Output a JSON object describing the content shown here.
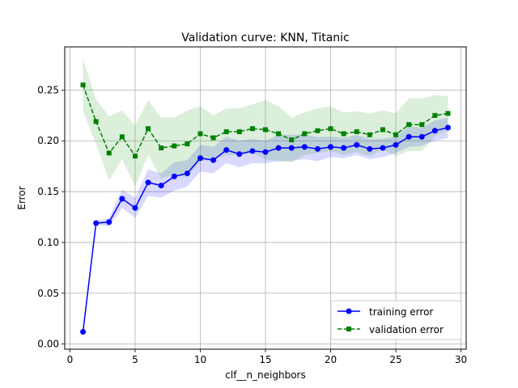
{
  "chart_data": {
    "type": "line",
    "title": "Validation curve: KNN, Titanic",
    "xlabel": "clf__n_neighbors",
    "ylabel": "Error",
    "xlim": [
      -0.4,
      30.4
    ],
    "ylim": [
      -0.0051,
      0.2925
    ],
    "xticks": [
      0,
      5,
      10,
      15,
      20,
      25,
      30
    ],
    "yticks": [
      0.0,
      0.05,
      0.1,
      0.15,
      0.2,
      0.25
    ],
    "ytick_labels": [
      "0.00",
      "0.05",
      "0.10",
      "0.15",
      "0.20",
      "0.25"
    ],
    "grid": true,
    "legend_position": "lower-right",
    "x": [
      1,
      2,
      3,
      4,
      5,
      6,
      7,
      8,
      9,
      10,
      11,
      12,
      13,
      14,
      15,
      16,
      17,
      18,
      19,
      20,
      21,
      22,
      23,
      24,
      25,
      26,
      27,
      28,
      29
    ],
    "series": [
      {
        "name": "training error",
        "color": "#0000ff",
        "band_color": "#0000ff",
        "marker": "circle",
        "linestyle": "solid",
        "values": [
          0.012,
          0.119,
          0.12,
          0.143,
          0.134,
          0.159,
          0.156,
          0.165,
          0.168,
          0.183,
          0.181,
          0.191,
          0.187,
          0.19,
          0.189,
          0.193,
          0.193,
          0.194,
          0.192,
          0.194,
          0.193,
          0.196,
          0.192,
          0.193,
          0.196,
          0.204,
          0.204,
          0.21,
          0.213
        ],
        "lower": [
          0.012,
          0.117,
          0.116,
          0.134,
          0.124,
          0.146,
          0.144,
          0.151,
          0.155,
          0.17,
          0.168,
          0.178,
          0.174,
          0.178,
          0.178,
          0.18,
          0.18,
          0.182,
          0.18,
          0.184,
          0.183,
          0.186,
          0.182,
          0.184,
          0.188,
          0.194,
          0.195,
          0.2,
          0.203
        ],
        "upper": [
          0.012,
          0.121,
          0.124,
          0.152,
          0.144,
          0.172,
          0.168,
          0.179,
          0.181,
          0.196,
          0.194,
          0.204,
          0.2,
          0.202,
          0.2,
          0.206,
          0.206,
          0.206,
          0.204,
          0.204,
          0.203,
          0.206,
          0.202,
          0.202,
          0.204,
          0.214,
          0.213,
          0.22,
          0.223
        ]
      },
      {
        "name": "validation error",
        "color": "#008000",
        "band_color": "#2ca02c",
        "marker": "square",
        "linestyle": "dashed",
        "values": [
          0.255,
          0.219,
          0.188,
          0.204,
          0.185,
          0.212,
          0.193,
          0.195,
          0.197,
          0.207,
          0.203,
          0.209,
          0.209,
          0.212,
          0.211,
          0.207,
          0.201,
          0.207,
          0.21,
          0.212,
          0.207,
          0.209,
          0.206,
          0.211,
          0.206,
          0.216,
          0.216,
          0.225,
          0.227
        ],
        "lower": [
          0.229,
          0.197,
          0.161,
          0.182,
          0.155,
          0.186,
          0.163,
          0.167,
          0.164,
          0.18,
          0.181,
          0.186,
          0.186,
          0.188,
          0.182,
          0.18,
          0.179,
          0.186,
          0.188,
          0.19,
          0.186,
          0.189,
          0.185,
          0.192,
          0.185,
          0.19,
          0.19,
          0.205,
          0.21
        ],
        "upper": [
          0.281,
          0.241,
          0.224,
          0.23,
          0.215,
          0.24,
          0.223,
          0.223,
          0.23,
          0.234,
          0.225,
          0.232,
          0.232,
          0.236,
          0.24,
          0.234,
          0.223,
          0.228,
          0.232,
          0.234,
          0.228,
          0.229,
          0.227,
          0.23,
          0.227,
          0.242,
          0.242,
          0.245,
          0.244
        ]
      }
    ]
  }
}
